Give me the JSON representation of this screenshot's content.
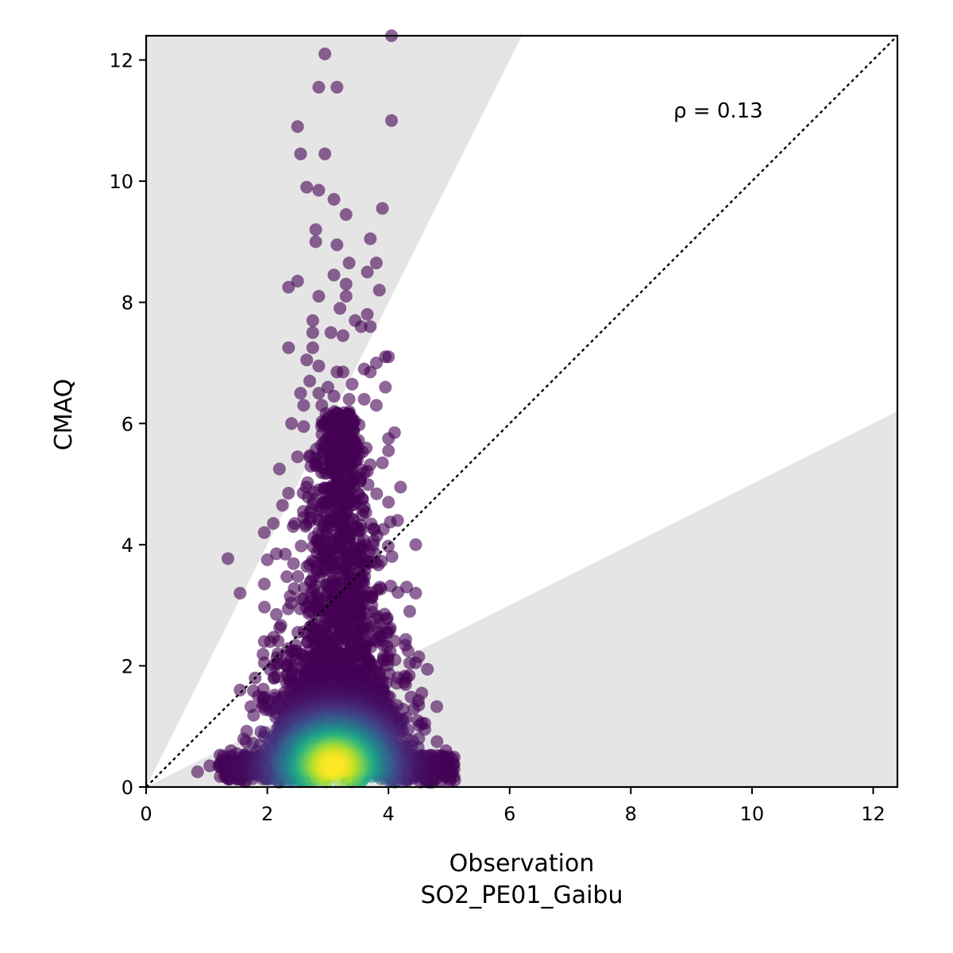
{
  "chart_data": {
    "type": "scatter",
    "title": "",
    "xlabel": "Observation",
    "xlabel_sub": "SO2_PE01_Gaibu",
    "ylabel": "CMAQ",
    "xlim": [
      0,
      12.4
    ],
    "ylim": [
      0,
      12.4
    ],
    "xticks": [
      0,
      2,
      4,
      6,
      8,
      10,
      12
    ],
    "yticks": [
      0,
      2,
      4,
      6,
      8,
      10,
      12
    ],
    "annotation": "ρ = 0.13",
    "reference_line": {
      "type": "1:1",
      "style": "dotted",
      "color": "#000000"
    },
    "shaded_regions": {
      "description": "outside factor-of-2 band",
      "upper_slope": 2,
      "lower_slope": 0.5,
      "color": "#e5e5e5"
    },
    "grid": false,
    "colormap": "viridis",
    "marker_alpha": 0.6,
    "dense_cluster": {
      "description": "high density core of points, color by point density",
      "center": [
        3.1,
        0.35
      ]
    },
    "outlier_points": [
      [
        4.05,
        12.4
      ],
      [
        2.95,
        12.1
      ],
      [
        2.85,
        11.55
      ],
      [
        3.15,
        11.55
      ],
      [
        4.05,
        11.0
      ],
      [
        2.5,
        10.9
      ],
      [
        2.55,
        10.45
      ],
      [
        2.95,
        10.45
      ],
      [
        2.65,
        9.9
      ],
      [
        2.85,
        9.85
      ],
      [
        3.1,
        9.7
      ],
      [
        3.9,
        9.55
      ],
      [
        3.3,
        9.45
      ],
      [
        2.8,
        9.2
      ],
      [
        3.7,
        9.05
      ],
      [
        2.8,
        9.0
      ],
      [
        3.15,
        8.95
      ],
      [
        3.8,
        8.65
      ],
      [
        3.35,
        8.65
      ],
      [
        3.65,
        8.5
      ],
      [
        3.1,
        8.45
      ],
      [
        2.5,
        8.35
      ],
      [
        2.35,
        8.25
      ],
      [
        3.3,
        8.3
      ],
      [
        3.85,
        8.2
      ],
      [
        2.85,
        8.1
      ],
      [
        3.3,
        8.1
      ],
      [
        3.2,
        7.9
      ],
      [
        3.65,
        7.8
      ],
      [
        3.45,
        7.7
      ],
      [
        3.55,
        7.6
      ],
      [
        3.7,
        7.6
      ],
      [
        2.75,
        7.7
      ],
      [
        2.75,
        7.5
      ],
      [
        3.05,
        7.5
      ],
      [
        3.25,
        7.45
      ],
      [
        2.35,
        7.25
      ],
      [
        2.75,
        7.25
      ],
      [
        3.95,
        7.1
      ],
      [
        4.0,
        7.1
      ],
      [
        3.8,
        7.0
      ],
      [
        2.65,
        7.05
      ],
      [
        2.85,
        6.95
      ],
      [
        3.6,
        6.9
      ],
      [
        3.15,
        6.85
      ],
      [
        3.25,
        6.85
      ],
      [
        3.7,
        6.85
      ],
      [
        2.7,
        6.7
      ],
      [
        3.0,
        6.6
      ],
      [
        3.4,
        6.65
      ],
      [
        3.95,
        6.6
      ],
      [
        2.55,
        6.5
      ],
      [
        2.85,
        6.5
      ],
      [
        3.1,
        6.45
      ],
      [
        3.35,
        6.4
      ],
      [
        3.6,
        6.4
      ],
      [
        2.6,
        6.3
      ],
      [
        2.9,
        6.3
      ],
      [
        3.8,
        6.3
      ],
      [
        2.4,
        6.0
      ],
      [
        2.6,
        5.95
      ],
      [
        3.0,
        5.95
      ],
      [
        3.4,
        5.9
      ],
      [
        4.1,
        5.85
      ],
      [
        4.0,
        5.75
      ],
      [
        2.5,
        5.45
      ],
      [
        2.7,
        5.45
      ],
      [
        4.0,
        5.55
      ],
      [
        3.9,
        5.35
      ],
      [
        2.2,
        5.25
      ],
      [
        2.35,
        4.85
      ],
      [
        4.2,
        4.95
      ],
      [
        4.0,
        4.7
      ],
      [
        2.1,
        4.35
      ],
      [
        2.25,
        4.65
      ],
      [
        4.15,
        4.4
      ],
      [
        4.45,
        4.0
      ],
      [
        1.95,
        4.2
      ],
      [
        2.0,
        3.75
      ],
      [
        1.35,
        3.77
      ],
      [
        2.15,
        3.85
      ],
      [
        4.3,
        3.3
      ],
      [
        4.45,
        3.2
      ],
      [
        1.55,
        3.2
      ],
      [
        1.95,
        3.35
      ],
      [
        4.35,
        2.9
      ],
      [
        2.15,
        2.85
      ],
      [
        1.95,
        2.4
      ],
      [
        2.05,
        2.4
      ],
      [
        4.5,
        2.15
      ],
      [
        4.45,
        2.05
      ],
      [
        1.95,
        2.05
      ],
      [
        1.55,
        1.6
      ],
      [
        1.8,
        1.8
      ],
      [
        4.3,
        1.8
      ],
      [
        4.55,
        1.55
      ],
      [
        1.85,
        1.5
      ],
      [
        4.5,
        1.35
      ],
      [
        4.6,
        1.05
      ],
      [
        4.6,
        0.95
      ],
      [
        1.65,
        0.75
      ],
      [
        4.5,
        0.8
      ],
      [
        4.8,
        0.75
      ],
      [
        4.95,
        0.6
      ],
      [
        1.4,
        0.6
      ],
      [
        1.5,
        0.55
      ],
      [
        5.05,
        0.25
      ],
      [
        0.85,
        0.25
      ],
      [
        1.05,
        0.35
      ],
      [
        1.2,
        0.35
      ]
    ]
  }
}
